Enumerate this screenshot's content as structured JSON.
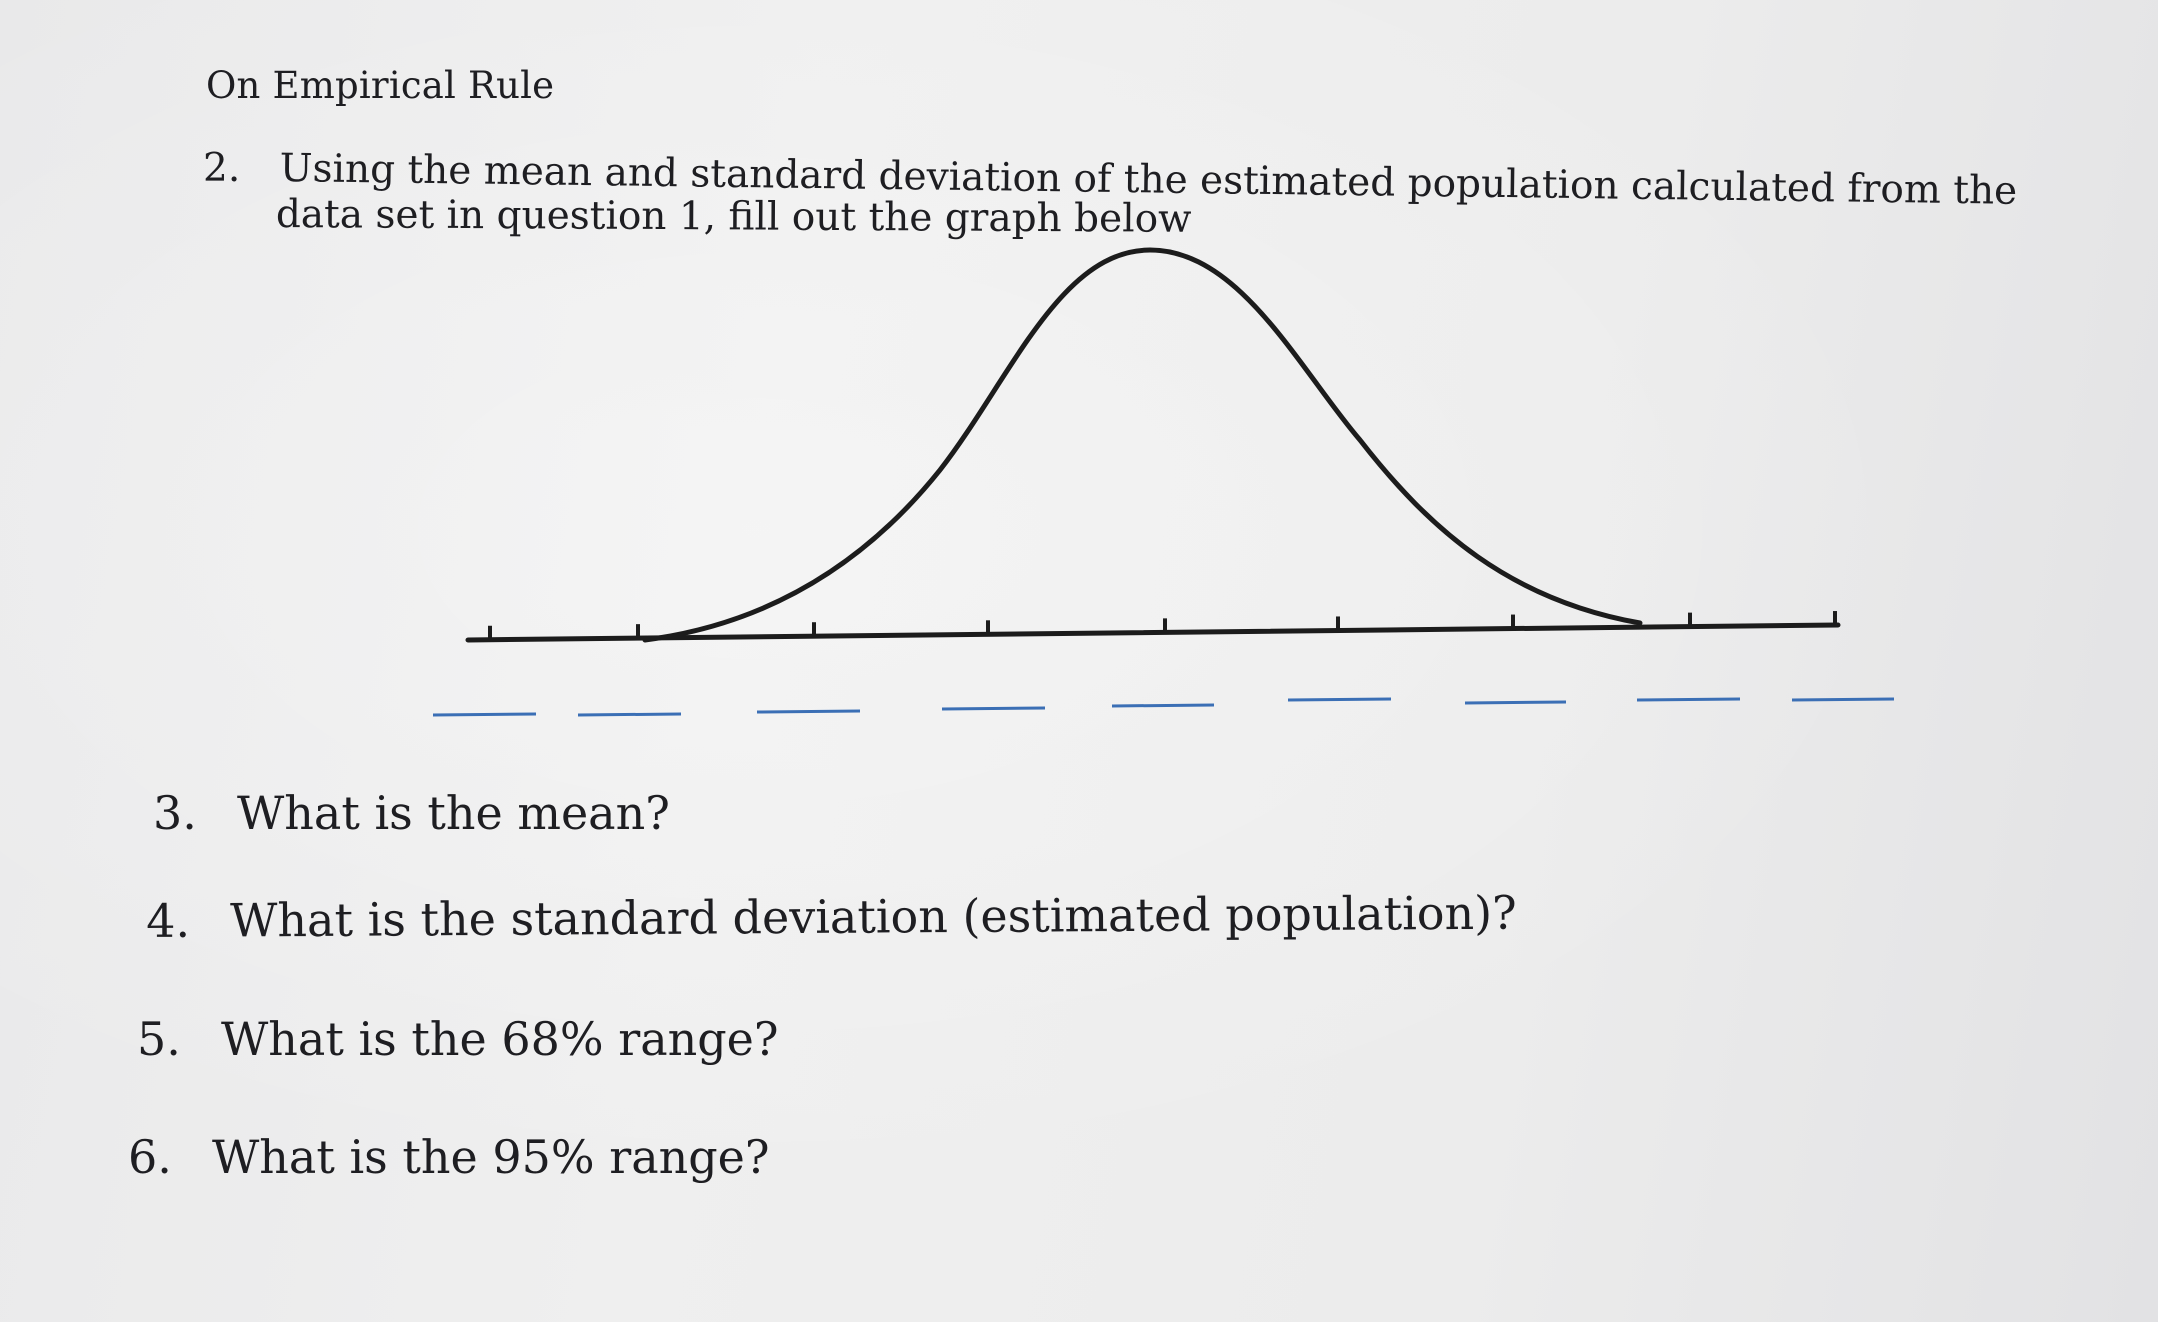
{
  "title": "On Empirical Rule",
  "question2": {
    "number": "2.",
    "line1": "Using the mean and standard deviation of the estimated population calculated from the",
    "line2": "data set in question 1, fill out the graph below"
  },
  "graph": {
    "curve": "bell-curve",
    "tick_count": 9,
    "blank_count": 9,
    "blank_color": "#3b6fb5",
    "line_color": "#1c1c1c"
  },
  "questions": [
    {
      "number": "3.",
      "text": "What is the mean?"
    },
    {
      "number": "4.",
      "text": "What is the standard deviation (estimated population)?"
    },
    {
      "number": "5.",
      "text": "What is the 68% range?"
    },
    {
      "number": "6.",
      "text": "What is the 95% range?"
    }
  ]
}
